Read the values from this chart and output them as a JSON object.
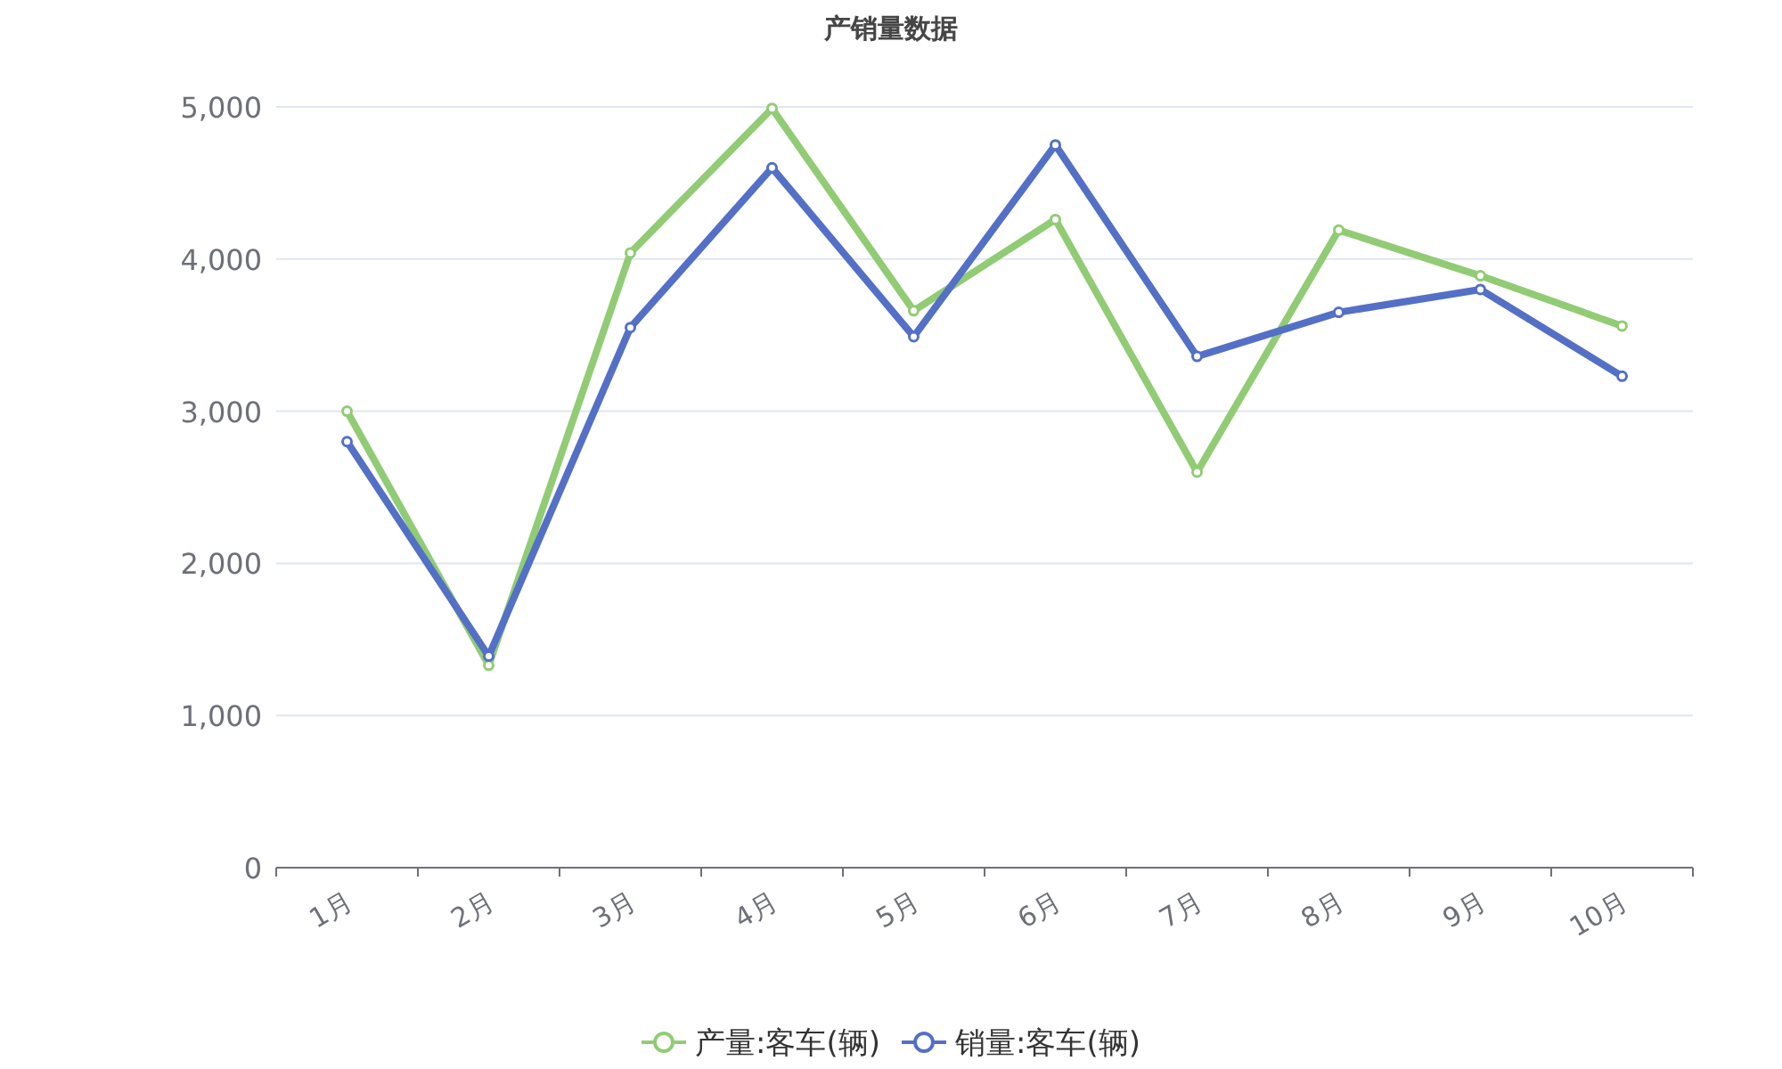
{
  "chart_data": {
    "type": "line",
    "title": "产销量数据",
    "categories": [
      "1月",
      "2月",
      "3月",
      "4月",
      "5月",
      "6月",
      "7月",
      "8月",
      "9月",
      "10月"
    ],
    "series": [
      {
        "name": "产量:客车(辆)",
        "color": "#91cc75",
        "values": [
          3000,
          1330,
          4040,
          4990,
          3660,
          4260,
          2600,
          4190,
          3890,
          3560
        ]
      },
      {
        "name": "销量:客车(辆)",
        "color": "#5470c6",
        "values": [
          2800,
          1390,
          3550,
          4600,
          3490,
          4750,
          3360,
          3650,
          3800,
          3230
        ]
      }
    ],
    "ylim": [
      0,
      5000
    ],
    "yticks": [
      0,
      {
        "value": 1000,
        "label": "1,000"
      },
      {
        "value": 2000,
        "label": "2,000"
      },
      {
        "value": 3000,
        "label": "3,000"
      },
      {
        "value": 4000,
        "label": "4,000"
      },
      {
        "value": 5000,
        "label": "5,000"
      }
    ],
    "grid": "y",
    "legend": "bottom",
    "marker": "circle",
    "line_style": "solid"
  }
}
